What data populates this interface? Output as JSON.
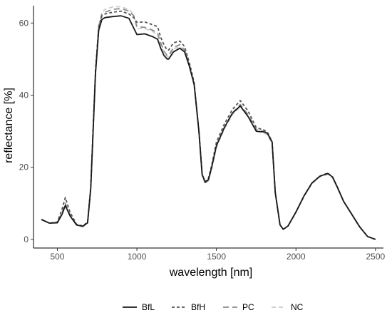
{
  "chart_data": {
    "type": "line",
    "xlabel": "wavelength [nm]",
    "ylabel": "reflectance [%]",
    "xlim": [
      350,
      2550
    ],
    "ylim": [
      -2.4,
      64.8
    ],
    "x_ticks": [
      500,
      1000,
      1500,
      2000,
      2500
    ],
    "y_ticks": [
      0,
      20,
      40,
      60
    ],
    "grid": false,
    "legend_position": "bottom",
    "series": [
      {
        "name": "BfL",
        "color": "#1a1a1a",
        "dash": "solid",
        "x": [
          400,
          450,
          500,
          530,
          550,
          580,
          620,
          660,
          690,
          710,
          740,
          760,
          780,
          800,
          850,
          900,
          950,
          1000,
          1050,
          1100,
          1130,
          1150,
          1170,
          1190,
          1200,
          1230,
          1270,
          1300,
          1330,
          1360,
          1390,
          1410,
          1430,
          1450,
          1470,
          1500,
          1550,
          1600,
          1650,
          1700,
          1750,
          1800,
          1820,
          1850,
          1870,
          1900,
          1920,
          1950,
          2000,
          2050,
          2100,
          2150,
          2200,
          2230,
          2260,
          2300,
          2350,
          2400,
          2450,
          2480,
          2500
        ],
        "y": [
          5.5,
          4.5,
          4.6,
          7,
          9.4,
          6.5,
          4,
          3.6,
          4.6,
          14,
          46,
          58,
          61,
          61.5,
          61.8,
          62,
          61.3,
          56.8,
          57,
          56.2,
          55.5,
          53,
          51,
          50,
          50,
          52,
          53,
          52,
          48,
          43,
          30,
          18,
          15.8,
          16.6,
          20,
          26,
          31,
          35,
          37,
          34,
          30,
          29.8,
          29.4,
          27,
          13,
          4,
          2.8,
          3.7,
          7.6,
          12,
          15.6,
          17.5,
          18.3,
          17.3,
          14.5,
          10.5,
          7,
          3.5,
          0.8,
          0.3,
          0
        ]
      },
      {
        "name": "BfH",
        "color": "#555555",
        "dash": "4 3",
        "x": [
          400,
          450,
          500,
          530,
          550,
          580,
          620,
          660,
          690,
          710,
          740,
          760,
          780,
          800,
          850,
          900,
          950,
          980,
          1000,
          1050,
          1100,
          1130,
          1150,
          1170,
          1190,
          1200,
          1230,
          1270,
          1300,
          1330,
          1360,
          1390,
          1410,
          1430,
          1450,
          1470,
          1500,
          1550,
          1600,
          1650,
          1700,
          1750,
          1800,
          1820,
          1850,
          1870,
          1900,
          1920,
          1950,
          2000,
          2050,
          2100,
          2150,
          2200,
          2230,
          2260,
          2300,
          2350,
          2400,
          2450,
          2480,
          2500
        ],
        "y": [
          5.5,
          4.5,
          4.8,
          8.5,
          11.6,
          7.5,
          4.2,
          3.7,
          4.8,
          14.5,
          47,
          59,
          62,
          62.5,
          63,
          63.3,
          62.5,
          61.5,
          60.2,
          60.3,
          59.5,
          59,
          56,
          54,
          52.5,
          52.5,
          54.5,
          55,
          53.5,
          49,
          43.5,
          30,
          18,
          16,
          17,
          20.5,
          27,
          32,
          36,
          38.5,
          35.5,
          31,
          30.3,
          29.8,
          27,
          13,
          4,
          2.8,
          3.7,
          7.6,
          12,
          15.6,
          17.5,
          18.4,
          17.3,
          14.5,
          10.5,
          7,
          3.5,
          0.8,
          0.3,
          0
        ]
      },
      {
        "name": "PC",
        "color": "#8c8c8c",
        "dash": "8 5",
        "x": [
          400,
          450,
          500,
          530,
          550,
          580,
          620,
          660,
          690,
          710,
          740,
          760,
          780,
          800,
          850,
          900,
          950,
          980,
          1000,
          1050,
          1100,
          1130,
          1150,
          1170,
          1190,
          1200,
          1230,
          1270,
          1300,
          1330,
          1360,
          1390,
          1410,
          1430,
          1450,
          1470,
          1500,
          1550,
          1600,
          1650,
          1700,
          1750,
          1800,
          1820,
          1850,
          1870,
          1900,
          1920,
          1950,
          2000,
          2050,
          2100,
          2150,
          2200,
          2230,
          2260,
          2300,
          2350,
          2400,
          2450,
          2480,
          2500
        ],
        "y": [
          5.5,
          4.5,
          4.7,
          7.5,
          10,
          6.8,
          4.1,
          3.6,
          4.7,
          14.2,
          46.5,
          59,
          62.5,
          63,
          63.8,
          64,
          63.3,
          62,
          59,
          58.8,
          58,
          57.2,
          54.5,
          52.2,
          51,
          51,
          53.2,
          54,
          52.5,
          48.5,
          43,
          30,
          18,
          15.8,
          16.5,
          20,
          26,
          31,
          35,
          37.4,
          34.5,
          30.5,
          29.9,
          29.5,
          27,
          13,
          4,
          2.8,
          3.7,
          7.6,
          12,
          15.6,
          17.5,
          18.2,
          17.2,
          14.4,
          10.5,
          7,
          3.5,
          0.8,
          0.3,
          0
        ]
      },
      {
        "name": "NC",
        "color": "#cccccc",
        "dash": "6 4",
        "x": [
          400,
          450,
          500,
          530,
          550,
          580,
          620,
          660,
          690,
          710,
          740,
          760,
          780,
          800,
          850,
          900,
          950,
          980,
          1000,
          1050,
          1100,
          1130,
          1150,
          1170,
          1190,
          1200,
          1230,
          1270,
          1300,
          1330,
          1360,
          1390,
          1410,
          1430,
          1450,
          1470,
          1500,
          1550,
          1600,
          1650,
          1700,
          1750,
          1800,
          1820,
          1850,
          1870,
          1900,
          1920,
          1950,
          2000,
          2050,
          2100,
          2150,
          2200,
          2230,
          2260,
          2300,
          2350,
          2400,
          2450,
          2480,
          2500
        ],
        "y": [
          5.5,
          4.5,
          4.6,
          7.2,
          9.6,
          6.6,
          4,
          3.5,
          4.6,
          14,
          46.3,
          59,
          63,
          63.8,
          64.5,
          64.5,
          63.8,
          62.3,
          58.5,
          58.5,
          57.6,
          56.7,
          54,
          51.8,
          50.6,
          50.6,
          52.8,
          53.5,
          52,
          48,
          42.5,
          29.5,
          17.5,
          15.4,
          16.2,
          19.6,
          25.5,
          30.6,
          34.5,
          36.8,
          34,
          30,
          29.4,
          29,
          26.5,
          12.8,
          4,
          2.8,
          3.6,
          7.5,
          11.8,
          15.4,
          17.3,
          18,
          17,
          14.2,
          10.4,
          6.9,
          3.4,
          0.8,
          0.3,
          0
        ]
      }
    ]
  }
}
